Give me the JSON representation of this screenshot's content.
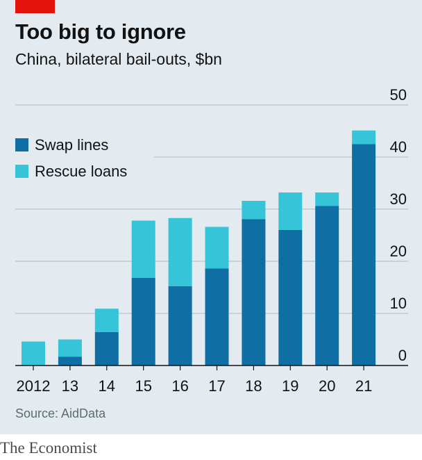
{
  "header": {
    "title": "Too big to ignore",
    "subtitle": "China, bilateral bail-outs, $bn"
  },
  "footer": {
    "source": "Source: AidData",
    "brand": "The Economist"
  },
  "colors": {
    "swap_lines": "#0f6ea3",
    "rescue_loans": "#35c4d8",
    "brand_red": "#e3120b"
  },
  "chart_data": {
    "type": "bar",
    "stacked": true,
    "categories": [
      "2012",
      "13",
      "14",
      "15",
      "16",
      "17",
      "18",
      "19",
      "20",
      "21"
    ],
    "series": [
      {
        "name": "Swap lines",
        "values": [
          0,
          1.7,
          6.4,
          16.8,
          15.2,
          18.6,
          28.1,
          26.0,
          30.6,
          42.5
        ]
      },
      {
        "name": "Rescue loans",
        "values": [
          4.6,
          3.3,
          4.5,
          11.0,
          13.1,
          8.0,
          3.5,
          7.2,
          2.6,
          2.6
        ]
      }
    ],
    "ylim": [
      0,
      50
    ],
    "yticks": [
      0,
      10,
      20,
      30,
      40,
      50
    ],
    "ytick_labels": [
      "0",
      "10",
      "20",
      "30",
      "40",
      "50"
    ],
    "y_axis_side": "right",
    "grid": true,
    "legend": "top-left"
  }
}
